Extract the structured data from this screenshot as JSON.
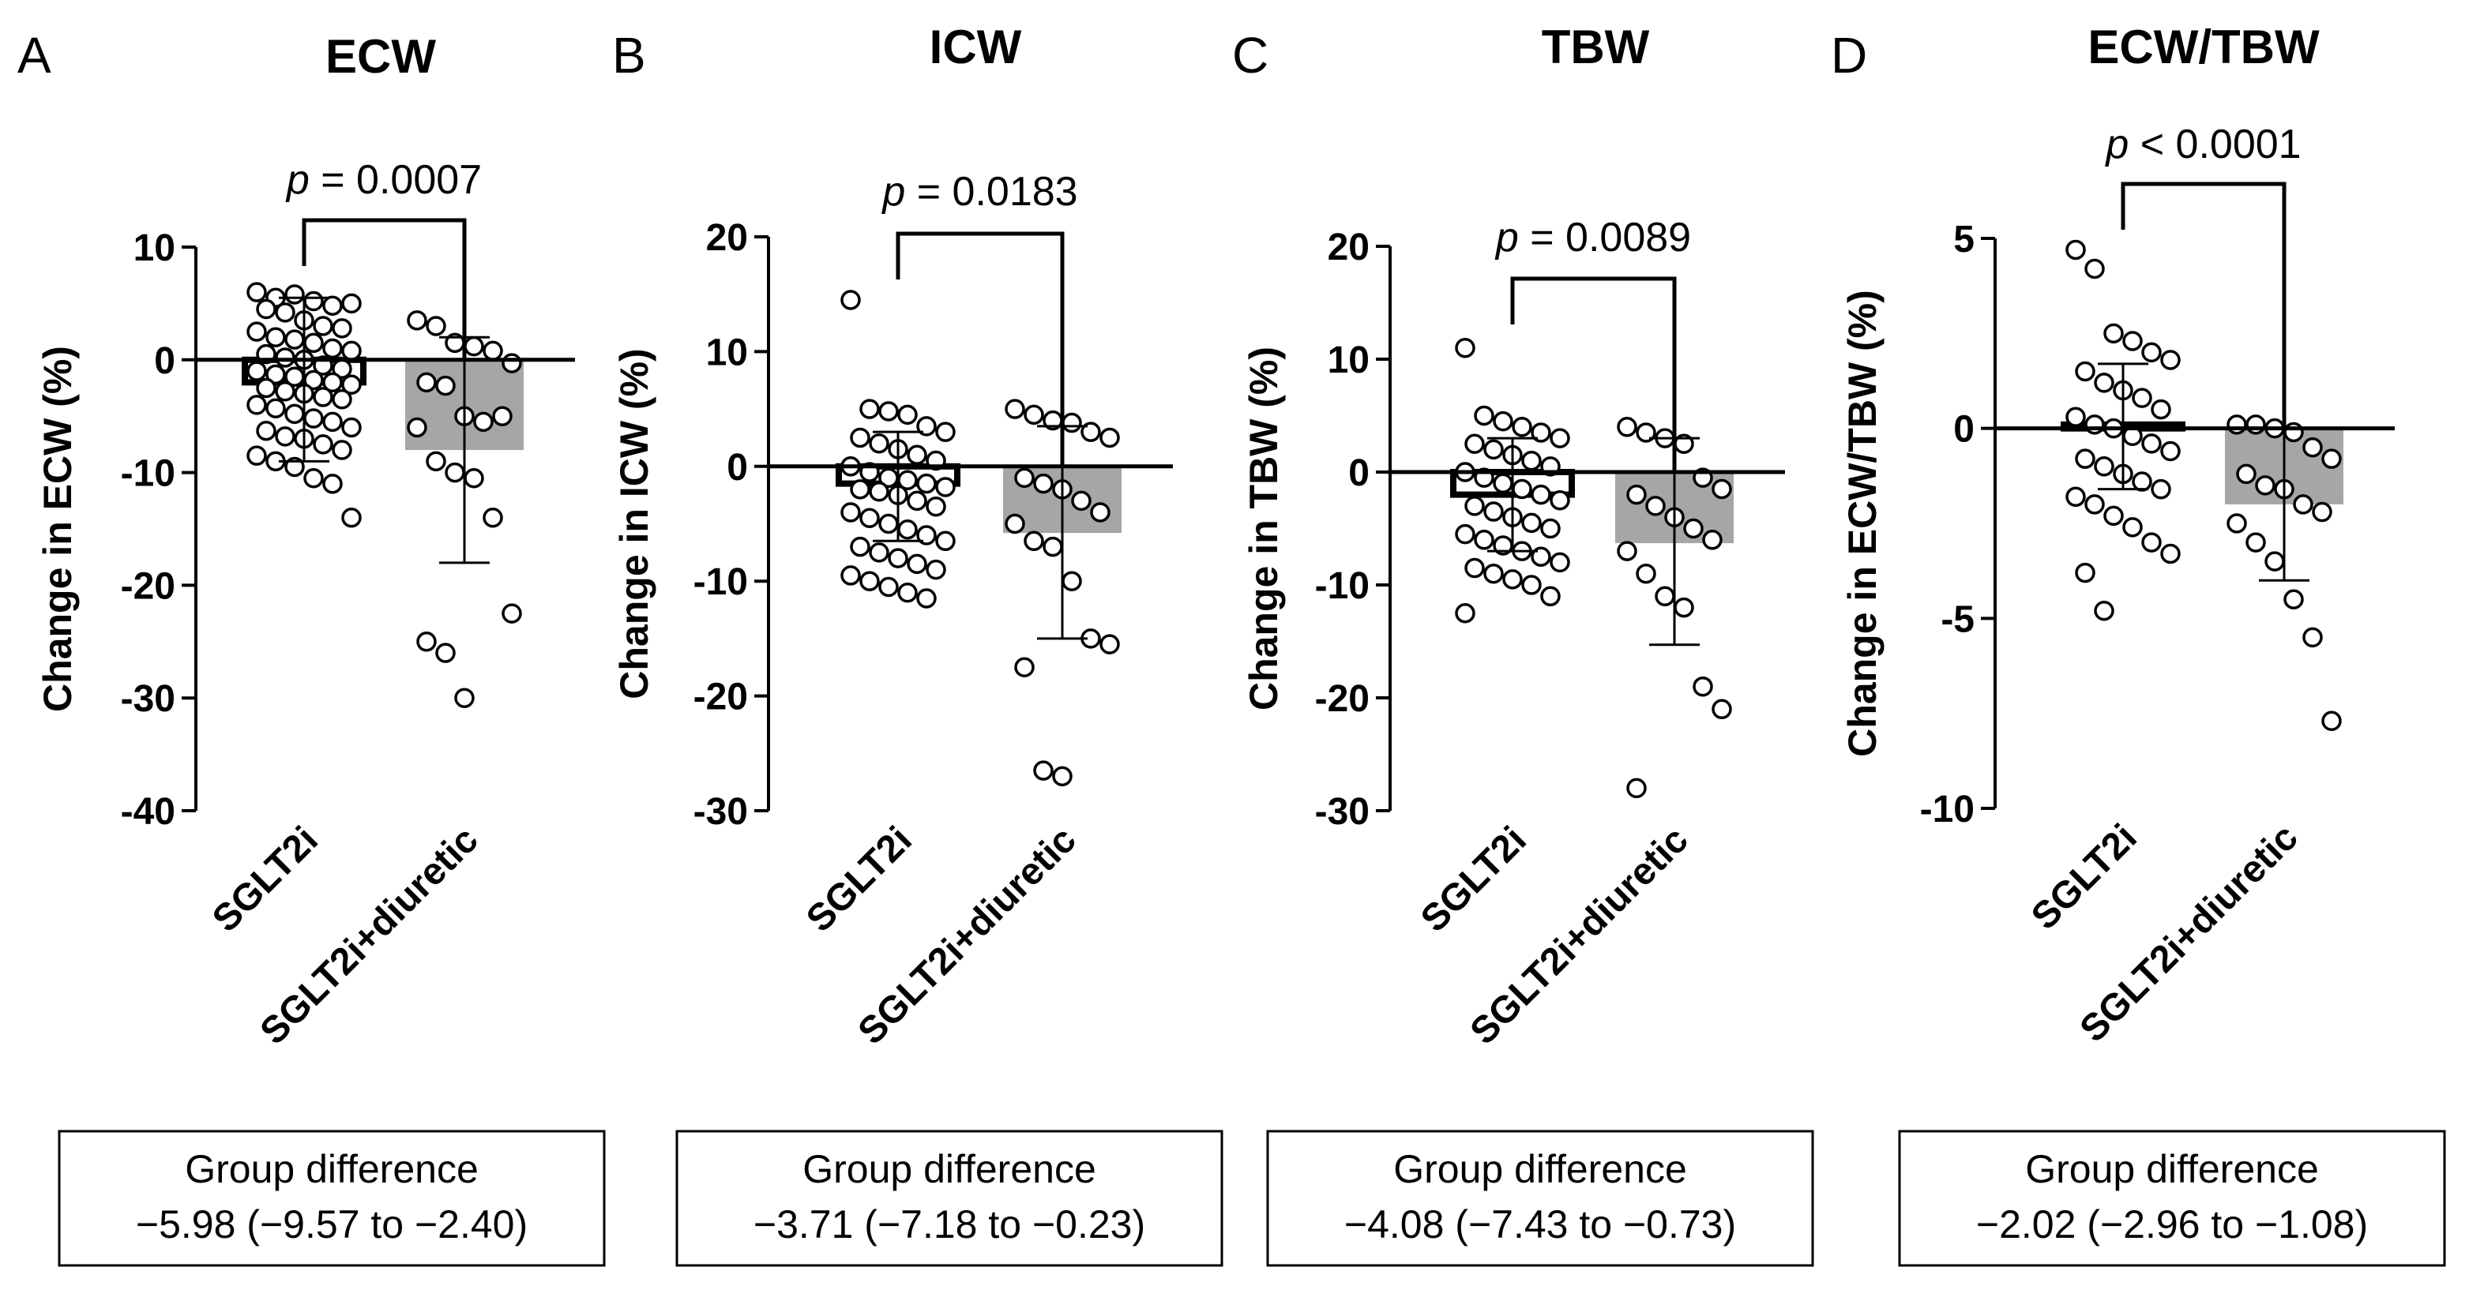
{
  "figure": {
    "bar_fill_sglt2i": "#ffffff",
    "bar_fill_diuretic": "#a6a6a6",
    "marker_edge": "#000000"
  },
  "chart_data": [
    {
      "panel": "A",
      "type": "bar",
      "title": "ECW",
      "ylabel": "Change in ECW (%)",
      "ylim": [
        -40,
        10
      ],
      "yticks": [
        10,
        0,
        -10,
        -20,
        -30,
        -40
      ],
      "ytick_labels": [
        "10",
        "0",
        "-10",
        "-20",
        "-30",
        "-40"
      ],
      "categories": [
        "SGLT2i",
        "SGLT2i+diuretic"
      ],
      "means": [
        -2.0,
        -8.0
      ],
      "sd_upper": [
        5.5,
        2.0
      ],
      "sd_lower": [
        -9.0,
        -18.0
      ],
      "points": [
        [
          6.0,
          5.5,
          5.8,
          5.2,
          4.8,
          5.0,
          4.5,
          4.2,
          3.5,
          3.0,
          2.8,
          2.5,
          2.0,
          1.8,
          1.5,
          1.0,
          0.8,
          0.5,
          0.2,
          0.0,
          -0.5,
          -0.8,
          -1.0,
          -1.3,
          -1.5,
          -1.8,
          -2.0,
          -2.2,
          -2.5,
          -2.8,
          -3.0,
          -3.3,
          -3.5,
          -4.0,
          -4.3,
          -4.8,
          -5.2,
          -5.5,
          -6.0,
          -6.3,
          -6.8,
          -7.0,
          -7.5,
          -8.0,
          -8.5,
          -9.0,
          -9.5,
          -10.5,
          -11.0,
          -14.0
        ],
        [
          3.5,
          3.0,
          1.5,
          1.2,
          0.8,
          -0.3,
          -2.0,
          -2.3,
          -5.0,
          -5.5,
          -5.0,
          -6.0,
          -9.0,
          -10.0,
          -10.5,
          -14.0,
          -22.5,
          -25.0,
          -26.0,
          -30.0
        ]
      ],
      "p_text": "p",
      "p_value": "= 0.0007",
      "group_difference_label": "Group difference",
      "group_difference_value": "−5.98 (−9.57 to −2.40)"
    },
    {
      "panel": "B",
      "type": "bar",
      "title": "ICW",
      "ylabel": "Change in ICW (%)",
      "ylim": [
        -30,
        20
      ],
      "yticks": [
        20,
        10,
        0,
        -10,
        -20,
        -30
      ],
      "ytick_labels": [
        "20",
        "10",
        "0",
        "-10",
        "-20",
        "-30"
      ],
      "categories": [
        "SGLT2i",
        "SGLT2i+diuretic"
      ],
      "means": [
        -1.5,
        -5.8
      ],
      "sd_upper": [
        3.0,
        3.5
      ],
      "sd_lower": [
        -6.5,
        -15.0
      ],
      "points": [
        [
          14.5,
          5.0,
          4.8,
          4.5,
          3.5,
          3.0,
          2.5,
          2.0,
          1.5,
          1.0,
          0.5,
          0.0,
          -0.5,
          -1.0,
          -1.2,
          -1.5,
          -1.8,
          -2.0,
          -2.2,
          -2.5,
          -3.0,
          -3.5,
          -4.0,
          -4.5,
          -5.0,
          -5.5,
          -6.0,
          -6.5,
          -7.0,
          -7.5,
          -8.0,
          -8.5,
          -9.0,
          -9.5,
          -10.0,
          -10.5,
          -11.0,
          -11.5
        ],
        [
          5.0,
          4.5,
          4.0,
          3.8,
          3.0,
          2.5,
          -1.0,
          -1.5,
          -2.0,
          -3.0,
          -4.0,
          -5.0,
          -6.5,
          -7.0,
          -10.0,
          -15.0,
          -15.5,
          -17.5,
          -26.5,
          -27.0
        ]
      ],
      "p_text": "p",
      "p_value": "= 0.0183",
      "group_difference_label": "Group difference",
      "group_difference_value": "−3.71 (−7.18 to −0.23)"
    },
    {
      "panel": "C",
      "type": "bar",
      "title": "TBW",
      "ylabel": "Change in TBW (%)",
      "ylim": [
        -30,
        20
      ],
      "yticks": [
        20,
        10,
        0,
        -10,
        -20,
        -30
      ],
      "ytick_labels": [
        "20",
        "10",
        "0",
        "-10",
        "-20",
        "-30"
      ],
      "categories": [
        "SGLT2i",
        "SGLT2i+diuretic"
      ],
      "means": [
        -2.0,
        -6.3
      ],
      "sd_upper": [
        3.0,
        3.0
      ],
      "sd_lower": [
        -7.0,
        -15.3
      ],
      "points": [
        [
          11.0,
          5.0,
          4.5,
          4.0,
          3.5,
          3.0,
          2.5,
          2.0,
          1.5,
          1.0,
          0.5,
          0.0,
          -0.5,
          -1.0,
          -1.5,
          -2.0,
          -2.5,
          -3.0,
          -3.5,
          -4.0,
          -4.5,
          -5.0,
          -5.5,
          -6.0,
          -6.5,
          -7.0,
          -7.5,
          -8.0,
          -8.5,
          -9.0,
          -9.5,
          -10.0,
          -11.0,
          -12.5
        ],
        [
          4.0,
          3.5,
          3.0,
          2.5,
          -0.5,
          -1.5,
          -2.0,
          -3.0,
          -4.0,
          -5.0,
          -6.0,
          -7.0,
          -9.0,
          -11.0,
          -12.0,
          -19.0,
          -21.0,
          -28.0
        ]
      ],
      "p_text": "p",
      "p_value": "= 0.0089",
      "group_difference_label": "Group difference",
      "group_difference_value": "−4.08 (−7.43 to −0.73)"
    },
    {
      "panel": "D",
      "type": "bar",
      "title": "ECW/TBW",
      "ylabel": "Change in ECW/TBW (%)",
      "ylim": [
        -10,
        5
      ],
      "yticks": [
        5,
        0,
        -5,
        -10
      ],
      "ytick_labels": [
        "5",
        "0",
        "-5",
        "-10"
      ],
      "categories": [
        "SGLT2i",
        "SGLT2i+diuretic"
      ],
      "means": [
        0.1,
        -2.0
      ],
      "sd_upper": [
        1.7,
        0.0
      ],
      "sd_lower": [
        -1.6,
        -4.0
      ],
      "points": [
        [
          4.7,
          4.2,
          2.5,
          2.3,
          2.0,
          1.8,
          1.5,
          1.2,
          1.0,
          0.8,
          0.5,
          0.3,
          0.1,
          0.0,
          -0.2,
          -0.4,
          -0.6,
          -0.8,
          -1.0,
          -1.2,
          -1.4,
          -1.6,
          -1.8,
          -2.0,
          -2.3,
          -2.6,
          -3.0,
          -3.3,
          -3.8,
          -4.8
        ],
        [
          0.1,
          0.1,
          0.0,
          -0.1,
          -0.5,
          -0.8,
          -1.2,
          -1.5,
          -1.6,
          -2.0,
          -2.2,
          -2.5,
          -3.0,
          -3.5,
          -4.5,
          -5.5,
          -7.7
        ]
      ],
      "p_text": "p",
      "p_value": "< 0.0001",
      "group_difference_label": "Group difference",
      "group_difference_value": "−2.02 (−2.96 to −1.08)"
    }
  ]
}
